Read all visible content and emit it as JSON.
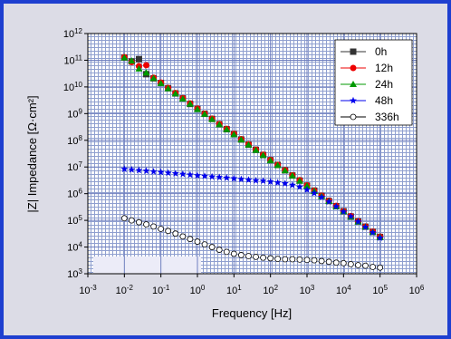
{
  "chart_data": {
    "type": "scatter",
    "x_label": "Frequency [Hz]",
    "y_label": "|Z| Impedance [Ω·cm²]",
    "xscale": "log",
    "yscale": "log",
    "grid": true,
    "legend": "upper right",
    "xlim": [
      0.001,
      1000000
    ],
    "ylim": [
      1000,
      1000000000000
    ],
    "xticks": [
      {
        "value": 0.001,
        "label": "10",
        "exponent": "-3"
      },
      {
        "value": 0.01,
        "label": "10",
        "exponent": "-2"
      },
      {
        "value": 0.1,
        "label": "10",
        "exponent": "-1"
      },
      {
        "value": 1,
        "label": "10",
        "exponent": "0"
      },
      {
        "value": 10,
        "label": "10",
        "exponent": "1"
      },
      {
        "value": 100,
        "label": "10",
        "exponent": "2"
      },
      {
        "value": 1000,
        "label": "10",
        "exponent": "3"
      },
      {
        "value": 10000,
        "label": "10",
        "exponent": "4"
      },
      {
        "value": 100000,
        "label": "10",
        "exponent": "5"
      },
      {
        "value": 1000000,
        "label": "10",
        "exponent": "6"
      }
    ],
    "yticks": [
      {
        "value": 1000,
        "label": "10",
        "exponent": "3"
      },
      {
        "value": 10000,
        "label": "10",
        "exponent": "4"
      },
      {
        "value": 100000,
        "label": "10",
        "exponent": "5"
      },
      {
        "value": 1000000,
        "label": "10",
        "exponent": "6"
      },
      {
        "value": 10000000,
        "label": "10",
        "exponent": "7"
      },
      {
        "value": 100000000,
        "label": "10",
        "exponent": "8"
      },
      {
        "value": 1000000000,
        "label": "10",
        "exponent": "9"
      },
      {
        "value": 10000000000,
        "label": "10",
        "exponent": "10"
      },
      {
        "value": 100000000000,
        "label": "10",
        "exponent": "11"
      },
      {
        "value": 1000000000000,
        "label": "10",
        "exponent": "12"
      }
    ],
    "x": [
      0.01,
      0.0158,
      0.0251,
      0.0398,
      0.0631,
      0.1,
      0.158,
      0.251,
      0.398,
      0.631,
      1,
      1.58,
      2.51,
      3.98,
      6.31,
      10,
      15.8,
      25.1,
      39.8,
      63.1,
      100,
      158,
      251,
      398,
      631,
      1000,
      1580,
      2510,
      3980,
      6310,
      10000,
      15800,
      25100,
      39800,
      63100,
      100000
    ],
    "series": [
      {
        "name": "0h",
        "color": "#333333",
        "marker": "square",
        "values": [
          126000000000.0,
          90000000000.0,
          110000000000.0,
          30000000000.0,
          21000000000.0,
          14000000000.0,
          8900000000.0,
          5700000000.0,
          3700000000.0,
          2300000000.0,
          1500000000.0,
          980000000.0,
          630000000.0,
          400000000.0,
          260000000.0,
          170000000.0,
          107000000.0,
          69000000.0,
          44000000.0,
          28000000.0,
          18000000.0,
          12000000.0,
          7500000.0,
          4800000.0,
          3100000.0,
          2000000.0,
          1300000.0,
          820000.0,
          530000.0,
          340000.0,
          220000.0,
          140000.0,
          91000.0,
          58000.0,
          37000.0,
          24000.0
        ]
      },
      {
        "name": "12h",
        "color": "#ee0000",
        "marker": "circle",
        "values": [
          130000000000.0,
          85000000000.0,
          60000000000.0,
          65000000000.0,
          22000000000.0,
          14500000000.0,
          9200000000.0,
          5900000000.0,
          3800000000.0,
          2400000000.0,
          1550000000.0,
          1000000000.0,
          650000000.0,
          410000000.0,
          270000000.0,
          175000000.0,
          110000000.0,
          71000000.0,
          45000000.0,
          29000000.0,
          18500000.0,
          12000000.0,
          7700000.0,
          4900000.0,
          3200000.0,
          2050000.0,
          1300000.0,
          840000.0,
          540000.0,
          350000.0,
          220000.0,
          145000.0,
          93000.0,
          59000.0,
          38000.0,
          24500.0
        ]
      },
      {
        "name": "24h",
        "color": "#009900",
        "marker": "triangle",
        "values": [
          125000000000.0,
          95000000000.0,
          48000000000.0,
          34000000000.0,
          21000000000.0,
          13500000000.0,
          8700000000.0,
          5600000000.0,
          3600000000.0,
          2300000000.0,
          1450000000.0,
          960000000.0,
          620000000.0,
          390000000.0,
          255000000.0,
          165000000.0,
          105000000.0,
          68000000.0,
          43000000.0,
          27500000.0,
          17500000.0,
          11500000.0,
          7400000.0,
          4700000.0,
          3000000.0,
          1950000.0,
          1250000.0,
          800000.0,
          520000.0,
          330000.0,
          215000.0,
          135000.0,
          89000.0,
          57000.0,
          36000.0,
          23500.0
        ]
      },
      {
        "name": "48h",
        "color": "#0000ee",
        "marker": "star",
        "values": [
          8300000.0,
          7900000.0,
          7500000.0,
          7100000.0,
          6700000.0,
          6400000.0,
          6000000.0,
          5700000.0,
          5400000.0,
          5100000.0,
          4800000.0,
          4600000.0,
          4300000.0,
          4100000.0,
          3900000.0,
          3700000.0,
          3500000.0,
          3300000.0,
          3100000.0,
          3000000.0,
          2800000.0,
          2600000.0,
          2400000.0,
          2100000.0,
          1800000.0,
          1400000.0,
          1050000.0,
          740000.0,
          500000.0,
          330000.0,
          210000.0,
          140000.0,
          89000.0,
          56000.0,
          35000.0,
          22000.0
        ]
      },
      {
        "name": "336h",
        "color": "#ffffff",
        "marker": "open-circle",
        "values": [
          120000.0,
          100000.0,
          85000.0,
          71000.0,
          59000.0,
          48000.0,
          40000.0,
          32000.0,
          25000.0,
          20000.0,
          16000.0,
          12600.0,
          10000.0,
          7900.0,
          6600.0,
          5600.0,
          5000.0,
          4600.0,
          4300.0,
          4000.0,
          3800.0,
          3600.0,
          3500.0,
          3500.0,
          3400.0,
          3300.0,
          3200.0,
          3000.0,
          2800.0,
          2600.0,
          2500.0,
          2300.0,
          2100.0,
          2000.0,
          1800.0,
          1700.0
        ]
      }
    ]
  }
}
